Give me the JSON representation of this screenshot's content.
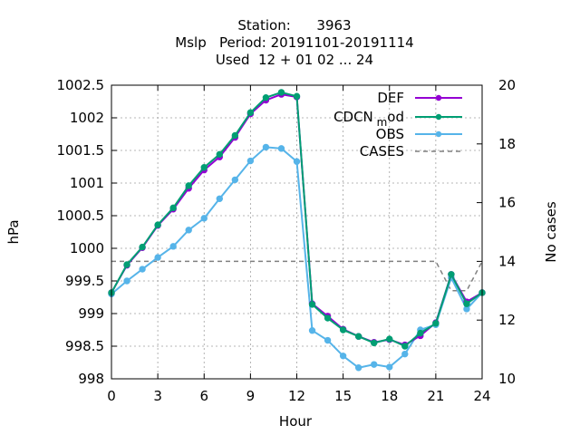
{
  "chart_data": {
    "type": "line",
    "title_lines": [
      "Station:      3963",
      "Mslp   Period: 20191101-20191114",
      "Used  12 + 01 02 ... 24"
    ],
    "xlabel": "Hour",
    "ylabel": "hPa",
    "y2label": "No cases",
    "xlim": [
      0,
      24
    ],
    "ylim": [
      998,
      1002.5
    ],
    "y2lim": [
      10,
      20
    ],
    "x_ticks": [
      0,
      3,
      6,
      9,
      12,
      15,
      18,
      21,
      24
    ],
    "y_ticks": [
      998,
      998.5,
      999,
      999.5,
      1000,
      1000.5,
      1001,
      1001.5,
      1002,
      1002.5
    ],
    "y_tick_labels": [
      "998",
      "998.5",
      "999",
      "999.5",
      "1000",
      "1000.5",
      "1001",
      "1001.5",
      "1002",
      "1002.5"
    ],
    "y2_ticks": [
      10,
      12,
      14,
      16,
      18,
      20
    ],
    "grid": true,
    "legend_position": "top-right",
    "x": [
      0,
      1,
      2,
      3,
      4,
      5,
      6,
      7,
      8,
      9,
      10,
      11,
      12,
      13,
      14,
      15,
      16,
      17,
      18,
      19,
      20,
      21,
      22,
      23,
      24
    ],
    "series": [
      {
        "name": "DEF",
        "legend_label": "DEF",
        "color": "#9400d3",
        "marker": "circle",
        "axis": "y",
        "values": [
          999.32,
          999.74,
          1000.01,
          1000.35,
          1000.6,
          1000.92,
          1001.2,
          1001.4,
          1001.7,
          1002.06,
          1002.27,
          1002.36,
          1002.32,
          999.15,
          998.96,
          998.76,
          998.65,
          998.56,
          998.6,
          998.52,
          998.66,
          998.86,
          999.6,
          999.18,
          999.32
        ]
      },
      {
        "name": "CDCN_mod",
        "legend_label": "CDCN",
        "legend_subscript": "m",
        "legend_suffix": "od",
        "color": "#009e73",
        "marker": "circle",
        "axis": "y",
        "values": [
          999.32,
          999.75,
          1000.02,
          1000.36,
          1000.62,
          1000.96,
          1001.24,
          1001.44,
          1001.73,
          1002.08,
          1002.31,
          1002.39,
          1002.33,
          999.14,
          998.93,
          998.75,
          998.65,
          998.55,
          998.61,
          998.5,
          998.7,
          998.85,
          999.6,
          999.15,
          999.32
        ]
      },
      {
        "name": "OBS",
        "legend_label": "OBS",
        "color": "#56b4e9",
        "marker": "circle",
        "axis": "y",
        "values": [
          999.3,
          999.5,
          999.68,
          999.86,
          1000.03,
          1000.28,
          1000.46,
          1000.76,
          1001.05,
          1001.34,
          1001.55,
          1001.53,
          1001.33,
          998.74,
          998.59,
          998.35,
          998.17,
          998.22,
          998.18,
          998.38,
          998.75,
          998.83,
          999.55,
          999.07,
          999.32
        ]
      },
      {
        "name": "CASES",
        "legend_label": "CASES",
        "color": "#808080",
        "dash": true,
        "marker": "none",
        "axis": "y2",
        "values": [
          14,
          14,
          14,
          14,
          14,
          14,
          14,
          14,
          14,
          14,
          14,
          14,
          14,
          14,
          14,
          14,
          14,
          14,
          14,
          14,
          14,
          14,
          13,
          13,
          14
        ]
      }
    ]
  }
}
